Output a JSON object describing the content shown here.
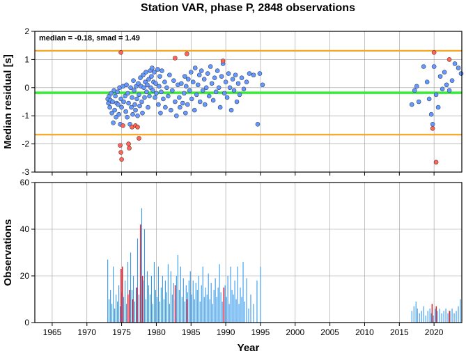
{
  "title": "Station VAR, phase P, 2848 observations",
  "colors": {
    "median_line": "#33ee33",
    "smad_lines": "#f5a623",
    "point_normal": "#6699ff",
    "point_outlier": "#ff6655",
    "bar_normal": "#3399ee",
    "bar_outlier": "#dd2233",
    "grid": "#999999"
  },
  "chart_data": [
    {
      "type": "scatter",
      "ylabel": "Median residual [s]",
      "annotation": "median = -0.18, smad = 1.49",
      "xlim": [
        1962.5,
        2024
      ],
      "ylim": [
        -3,
        2
      ],
      "x_ticks": [
        1965,
        1970,
        1975,
        1980,
        1985,
        1990,
        1995,
        2000,
        2005,
        2010,
        2015,
        2020
      ],
      "y_ticks": [
        -3,
        -2,
        -1,
        0,
        1,
        2
      ],
      "median": -0.18,
      "upper_bound": 1.31,
      "lower_bound": -1.67,
      "points_normal": [
        [
          1973.0,
          -0.4
        ],
        [
          1973.1,
          -0.55
        ],
        [
          1973.2,
          -0.3
        ],
        [
          1973.3,
          -0.7
        ],
        [
          1973.4,
          -0.45
        ],
        [
          1973.5,
          -0.2
        ],
        [
          1973.6,
          -0.9
        ],
        [
          1973.7,
          -0.5
        ],
        [
          1973.8,
          -1.25
        ],
        [
          1973.9,
          -0.1
        ],
        [
          1974.0,
          -0.8
        ],
        [
          1974.1,
          -0.3
        ],
        [
          1974.2,
          -1.05
        ],
        [
          1974.3,
          -0.55
        ],
        [
          1974.4,
          -0.15
        ],
        [
          1974.5,
          -0.6
        ],
        [
          1974.6,
          -0.95
        ],
        [
          1974.7,
          0.0
        ],
        [
          1974.8,
          -1.3
        ],
        [
          1974.9,
          -0.4
        ],
        [
          1975.0,
          -0.7
        ],
        [
          1975.2,
          0.05
        ],
        [
          1975.3,
          -0.5
        ],
        [
          1975.5,
          -0.3
        ],
        [
          1975.6,
          -0.85
        ],
        [
          1975.7,
          0.1
        ],
        [
          1975.8,
          -1.05
        ],
        [
          1975.9,
          -0.2
        ],
        [
          1976.0,
          -0.55
        ],
        [
          1976.2,
          -1.3
        ],
        [
          1976.3,
          0.0
        ],
        [
          1976.4,
          -0.7
        ],
        [
          1976.5,
          -0.35
        ],
        [
          1976.6,
          -0.95
        ],
        [
          1976.7,
          0.25
        ],
        [
          1976.8,
          -0.1
        ],
        [
          1976.9,
          -0.6
        ],
        [
          1977.0,
          -0.8
        ],
        [
          1977.1,
          0.05
        ],
        [
          1977.2,
          -0.4
        ],
        [
          1977.3,
          -1.0
        ],
        [
          1977.4,
          0.15
        ],
        [
          1977.5,
          -0.25
        ],
        [
          1977.6,
          -0.65
        ],
        [
          1977.7,
          0.35
        ],
        [
          1977.8,
          0.05
        ],
        [
          1977.9,
          -0.5
        ],
        [
          1978.0,
          -0.9
        ],
        [
          1978.1,
          0.45
        ],
        [
          1978.2,
          0.0
        ],
        [
          1978.3,
          -0.35
        ],
        [
          1978.4,
          0.2
        ],
        [
          1978.5,
          0.55
        ],
        [
          1978.6,
          -0.15
        ],
        [
          1978.7,
          0.1
        ],
        [
          1978.8,
          -0.7
        ],
        [
          1978.9,
          0.3
        ],
        [
          1979.0,
          -0.3
        ],
        [
          1979.1,
          0.6
        ],
        [
          1979.2,
          0.0
        ],
        [
          1979.3,
          0.4
        ],
        [
          1979.4,
          0.7
        ],
        [
          1979.5,
          -0.1
        ],
        [
          1979.6,
          0.2
        ],
        [
          1979.7,
          0.55
        ],
        [
          1979.8,
          -0.35
        ],
        [
          1979.9,
          0.15
        ],
        [
          1980.0,
          -0.2
        ],
        [
          1980.2,
          0.65
        ],
        [
          1980.3,
          -0.6
        ],
        [
          1980.4,
          0.05
        ],
        [
          1980.5,
          0.4
        ],
        [
          1980.6,
          -0.9
        ],
        [
          1980.7,
          -0.15
        ],
        [
          1980.8,
          0.6
        ],
        [
          1981.0,
          -0.4
        ],
        [
          1981.2,
          0.2
        ],
        [
          1981.3,
          -0.7
        ],
        [
          1981.5,
          0.0
        ],
        [
          1981.7,
          -0.3
        ],
        [
          1981.9,
          0.45
        ],
        [
          1982.1,
          -0.8
        ],
        [
          1982.3,
          -0.1
        ],
        [
          1982.5,
          0.25
        ],
        [
          1982.7,
          -0.5
        ],
        [
          1982.9,
          -1.0
        ],
        [
          1983.1,
          0.1
        ],
        [
          1983.3,
          -0.35
        ],
        [
          1983.4,
          -0.7
        ],
        [
          1983.6,
          0.15
        ],
        [
          1983.8,
          -0.55
        ],
        [
          1984.0,
          -0.2
        ],
        [
          1984.1,
          0.4
        ],
        [
          1984.2,
          -0.9
        ],
        [
          1984.3,
          0.05
        ],
        [
          1984.5,
          -0.6
        ],
        [
          1984.6,
          0.3
        ],
        [
          1984.8,
          -0.1
        ],
        [
          1985.0,
          0.55
        ],
        [
          1985.1,
          -0.4
        ],
        [
          1985.3,
          0.2
        ],
        [
          1985.5,
          -0.8
        ],
        [
          1985.6,
          0.7
        ],
        [
          1985.8,
          -0.25
        ],
        [
          1986.0,
          0.1
        ],
        [
          1986.2,
          0.45
        ],
        [
          1986.3,
          -0.5
        ],
        [
          1986.5,
          0.6
        ],
        [
          1986.7,
          -0.1
        ],
        [
          1986.9,
          0.3
        ],
        [
          1987.0,
          -0.6
        ],
        [
          1987.2,
          0.0
        ],
        [
          1987.4,
          0.5
        ],
        [
          1987.6,
          -0.3
        ],
        [
          1987.8,
          0.75
        ],
        [
          1988.0,
          0.15
        ],
        [
          1988.2,
          -0.45
        ],
        [
          1988.4,
          0.35
        ],
        [
          1988.6,
          -0.15
        ],
        [
          1988.8,
          0.6
        ],
        [
          1989.0,
          0.0
        ],
        [
          1989.2,
          -0.7
        ],
        [
          1989.4,
          0.4
        ],
        [
          1989.6,
          0.85
        ],
        [
          1989.8,
          -0.2
        ],
        [
          1990.0,
          0.2
        ],
        [
          1990.2,
          -0.35
        ],
        [
          1990.4,
          0.5
        ],
        [
          1990.6,
          0.0
        ],
        [
          1990.8,
          -0.8
        ],
        [
          1991.0,
          0.3
        ],
        [
          1991.2,
          -0.1
        ],
        [
          1991.4,
          0.45
        ],
        [
          1991.6,
          -0.5
        ],
        [
          1991.8,
          0.15
        ],
        [
          1992.0,
          -0.25
        ],
        [
          1992.3,
          0.35
        ],
        [
          1992.6,
          -0.05
        ],
        [
          1993.0,
          0.2
        ],
        [
          1993.4,
          0.5
        ],
        [
          1994.0,
          0.45
        ],
        [
          1994.6,
          -1.3
        ],
        [
          1994.9,
          0.5
        ],
        [
          1995.3,
          0.1
        ],
        [
          2016.8,
          -0.6
        ],
        [
          2017.2,
          -0.1
        ],
        [
          2017.5,
          0.05
        ],
        [
          2017.8,
          -0.5
        ],
        [
          2018.5,
          0.75
        ],
        [
          2019.0,
          0.2
        ],
        [
          2019.3,
          -0.4
        ],
        [
          2019.6,
          -0.95
        ],
        [
          2019.8,
          -1.3
        ],
        [
          2020.0,
          0.75
        ],
        [
          2020.3,
          -0.25
        ],
        [
          2020.6,
          -0.7
        ],
        [
          2020.9,
          0.4
        ],
        [
          2021.2,
          -0.05
        ],
        [
          2021.5,
          0.55
        ],
        [
          2021.8,
          0.1
        ],
        [
          2022.2,
          -0.1
        ],
        [
          2022.6,
          0.25
        ],
        [
          2023.0,
          0.85
        ],
        [
          2023.5,
          0.7
        ],
        [
          2023.9,
          0.5
        ]
      ],
      "points_outlier": [
        [
          1974.9,
          1.25
        ],
        [
          1974.8,
          -2.05
        ],
        [
          1974.9,
          -2.3
        ],
        [
          1975.0,
          -2.55
        ],
        [
          1975.2,
          -1.35
        ],
        [
          1976.0,
          -2.0
        ],
        [
          1976.1,
          -2.15
        ],
        [
          1976.5,
          -1.4
        ],
        [
          1977.0,
          -1.35
        ],
        [
          1977.3,
          -1.4
        ],
        [
          1977.5,
          -1.8
        ],
        [
          1982.7,
          1.05
        ],
        [
          1984.4,
          1.2
        ],
        [
          1989.6,
          0.95
        ],
        [
          2019.8,
          -1.45
        ],
        [
          2020.0,
          1.25
        ],
        [
          2020.3,
          -2.65
        ],
        [
          2022.2,
          1.0
        ]
      ]
    },
    {
      "type": "bar",
      "xlabel": "Year",
      "ylabel": "Observations",
      "xlim": [
        1962.5,
        2024
      ],
      "ylim": [
        0,
        60
      ],
      "x_ticks": [
        1965,
        1970,
        1975,
        1980,
        1985,
        1990,
        1995,
        2000,
        2005,
        2010,
        2015,
        2020
      ],
      "y_ticks": [
        0,
        20,
        40,
        60
      ],
      "bars_normal": [
        [
          1973.0,
          27
        ],
        [
          1973.2,
          10
        ],
        [
          1973.4,
          14
        ],
        [
          1973.6,
          8
        ],
        [
          1973.8,
          24
        ],
        [
          1974.0,
          6
        ],
        [
          1974.2,
          12
        ],
        [
          1974.4,
          9
        ],
        [
          1974.6,
          16
        ],
        [
          1974.8,
          7
        ],
        [
          1975.0,
          13
        ],
        [
          1975.3,
          11
        ],
        [
          1975.5,
          18
        ],
        [
          1975.7,
          8
        ],
        [
          1975.9,
          26
        ],
        [
          1976.1,
          10
        ],
        [
          1976.3,
          30
        ],
        [
          1976.5,
          14
        ],
        [
          1976.7,
          20
        ],
        [
          1976.9,
          9
        ],
        [
          1977.1,
          15
        ],
        [
          1977.3,
          36
        ],
        [
          1977.5,
          12
        ],
        [
          1977.7,
          25
        ],
        [
          1977.9,
          49
        ],
        [
          1978.1,
          18
        ],
        [
          1978.3,
          40
        ],
        [
          1978.5,
          10
        ],
        [
          1978.7,
          22
        ],
        [
          1978.9,
          16
        ],
        [
          1979.1,
          12
        ],
        [
          1979.3,
          20
        ],
        [
          1979.5,
          8
        ],
        [
          1979.7,
          26
        ],
        [
          1979.9,
          14
        ],
        [
          1980.1,
          11
        ],
        [
          1980.3,
          24
        ],
        [
          1980.5,
          9
        ],
        [
          1980.7,
          15
        ],
        [
          1980.9,
          20
        ],
        [
          1981.1,
          10
        ],
        [
          1981.3,
          18
        ],
        [
          1981.5,
          13
        ],
        [
          1981.7,
          25
        ],
        [
          1981.9,
          8
        ],
        [
          1982.1,
          22
        ],
        [
          1982.3,
          12
        ],
        [
          1982.5,
          17
        ],
        [
          1982.7,
          10
        ],
        [
          1982.9,
          20
        ],
        [
          1983.1,
          29
        ],
        [
          1983.3,
          14
        ],
        [
          1983.5,
          24
        ],
        [
          1983.7,
          11
        ],
        [
          1983.9,
          19
        ],
        [
          1984.1,
          9
        ],
        [
          1984.3,
          16
        ],
        [
          1984.5,
          13
        ],
        [
          1984.7,
          18
        ],
        [
          1984.9,
          22
        ],
        [
          1985.1,
          12
        ],
        [
          1985.3,
          18
        ],
        [
          1985.5,
          10
        ],
        [
          1985.7,
          17
        ],
        [
          1985.9,
          14
        ],
        [
          1986.1,
          20
        ],
        [
          1986.3,
          9
        ],
        [
          1986.5,
          16
        ],
        [
          1986.7,
          24
        ],
        [
          1986.9,
          11
        ],
        [
          1987.1,
          15
        ],
        [
          1987.3,
          12
        ],
        [
          1987.5,
          21
        ],
        [
          1987.7,
          10
        ],
        [
          1987.9,
          17
        ],
        [
          1988.1,
          8
        ],
        [
          1988.3,
          14
        ],
        [
          1988.5,
          19
        ],
        [
          1988.7,
          11
        ],
        [
          1988.9,
          15
        ],
        [
          1989.1,
          25
        ],
        [
          1989.3,
          13
        ],
        [
          1989.5,
          9
        ],
        [
          1989.9,
          16
        ],
        [
          1990.1,
          11
        ],
        [
          1990.3,
          20
        ],
        [
          1990.5,
          8
        ],
        [
          1990.7,
          24
        ],
        [
          1990.9,
          14
        ],
        [
          1991.1,
          12
        ],
        [
          1991.3,
          18
        ],
        [
          1991.5,
          10
        ],
        [
          1991.7,
          24
        ],
        [
          1991.9,
          8
        ],
        [
          1992.1,
          15
        ],
        [
          1992.3,
          11
        ],
        [
          1992.5,
          26
        ],
        [
          1992.7,
          9
        ],
        [
          1993.0,
          19
        ],
        [
          1993.3,
          6
        ],
        [
          1993.6,
          12
        ],
        [
          1994.0,
          8
        ],
        [
          1994.5,
          18
        ],
        [
          1995.0,
          24
        ],
        [
          2016.8,
          5
        ],
        [
          2017.1,
          7
        ],
        [
          2017.4,
          9
        ],
        [
          2017.6,
          6
        ],
        [
          2017.9,
          4
        ],
        [
          2018.2,
          5
        ],
        [
          2018.5,
          7
        ],
        [
          2018.8,
          3
        ],
        [
          2019.1,
          5
        ],
        [
          2019.4,
          6
        ],
        [
          2019.6,
          4
        ],
        [
          2019.9,
          3
        ],
        [
          2020.2,
          6
        ],
        [
          2020.5,
          5
        ],
        [
          2020.8,
          6
        ],
        [
          2021.1,
          4
        ],
        [
          2021.4,
          5
        ],
        [
          2021.7,
          6
        ],
        [
          2022.0,
          4
        ],
        [
          2022.3,
          5
        ],
        [
          2022.6,
          6
        ],
        [
          2022.9,
          4
        ],
        [
          2023.2,
          5
        ],
        [
          2023.5,
          7
        ],
        [
          2023.8,
          10
        ]
      ],
      "bars_outlier": [
        [
          1974.9,
          23
        ],
        [
          1975.1,
          24
        ],
        [
          1975.9,
          12
        ],
        [
          1976.1,
          14
        ],
        [
          1976.6,
          10
        ],
        [
          1977.2,
          15
        ],
        [
          1977.7,
          42
        ],
        [
          1978.0,
          20
        ],
        [
          1982.7,
          16
        ],
        [
          1984.4,
          10
        ],
        [
          1989.7,
          15
        ],
        [
          2019.7,
          8
        ],
        [
          2020.3,
          7
        ],
        [
          2022.2,
          5
        ]
      ]
    }
  ]
}
